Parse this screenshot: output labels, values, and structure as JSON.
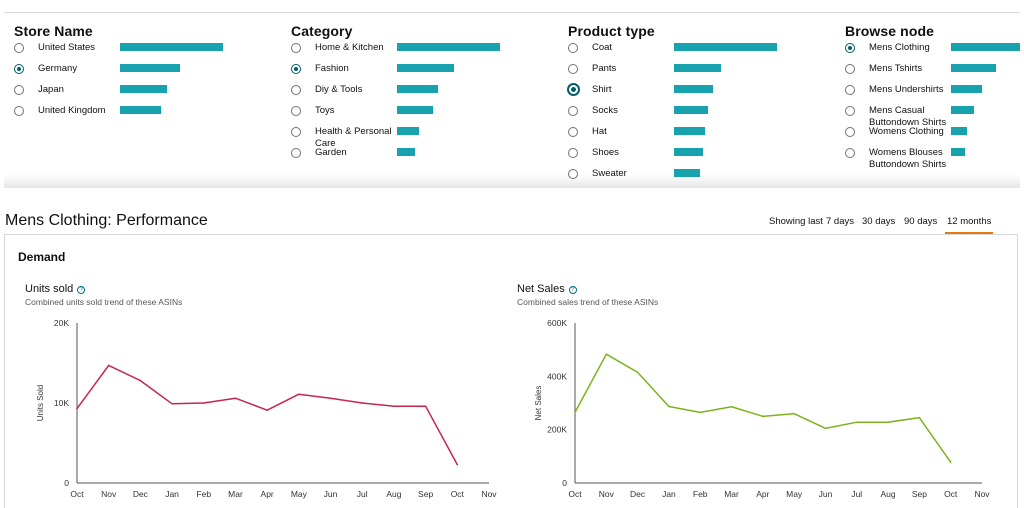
{
  "filters": [
    {
      "title": "Store Name",
      "items": [
        {
          "label": "United States",
          "share": 1.0,
          "selected": false
        },
        {
          "label": "Germany",
          "share": 0.58,
          "selected": true
        },
        {
          "label": "Japan",
          "share": 0.46,
          "selected": false
        },
        {
          "label": "United Kingdom",
          "share": 0.4,
          "selected": false
        }
      ]
    },
    {
      "title": "Category",
      "items": [
        {
          "label": "Home & Kitchen",
          "share": 1.0,
          "selected": false
        },
        {
          "label": "Fashion",
          "share": 0.55,
          "selected": true
        },
        {
          "label": "Diy & Tools",
          "share": 0.4,
          "selected": false
        },
        {
          "label": "Toys",
          "share": 0.35,
          "selected": false
        },
        {
          "label": "Health & Personal Care",
          "share": 0.21,
          "selected": false
        },
        {
          "label": "Garden",
          "share": 0.17,
          "selected": false
        }
      ]
    },
    {
      "title": "Product type",
      "items": [
        {
          "label": "Coat",
          "share": 1.0,
          "selected": false
        },
        {
          "label": "Pants",
          "share": 0.46,
          "selected": false
        },
        {
          "label": "Shirt",
          "share": 0.38,
          "selected": true
        },
        {
          "label": "Socks",
          "share": 0.33,
          "selected": false
        },
        {
          "label": "Hat",
          "share": 0.3,
          "selected": false
        },
        {
          "label": "Shoes",
          "share": 0.28,
          "selected": false
        },
        {
          "label": "Sweater",
          "share": 0.25,
          "selected": false
        }
      ]
    },
    {
      "title": "Browse node",
      "items": [
        {
          "label": "Mens Clothing",
          "share": 1.0,
          "selected": true
        },
        {
          "label": "Mens Tshirts",
          "share": 0.44,
          "selected": false
        },
        {
          "label": "Mens Undershirts",
          "share": 0.3,
          "selected": false
        },
        {
          "label": "Mens Casual Buttondown Shirts",
          "share": 0.22,
          "selected": false
        },
        {
          "label": "Womens Clothing",
          "share": 0.16,
          "selected": false
        },
        {
          "label": "Womens Blouses Buttondown Shirts",
          "share": 0.14,
          "selected": false
        }
      ]
    }
  ],
  "performance": {
    "title": "Mens Clothing: Performance",
    "showing_label": "Showing last",
    "ranges": [
      "7 days",
      "30 days",
      "90 days",
      "12 months"
    ],
    "active_range": "12 months",
    "section": "Demand"
  },
  "charts": {
    "units": {
      "title": "Units sold",
      "subtitle": "Combined units sold trend of these ASINs",
      "info_glyph": "?"
    },
    "sales": {
      "title": "Net Sales",
      "subtitle": "Combined sales trend of these ASINs",
      "info_glyph": "?"
    }
  },
  "colors": {
    "accent": "#17a2ad",
    "units_line": "#c7254e",
    "sales_line": "#7db31d",
    "active_tab": "#e47911"
  },
  "chart_data": [
    {
      "type": "line",
      "title": "Units sold",
      "ylabel": "Units Sold",
      "x": [
        "Oct",
        "Nov",
        "Dec",
        "Jan",
        "Feb",
        "Mar",
        "Apr",
        "May",
        "Jun",
        "Jul",
        "Aug",
        "Sep",
        "Oct",
        "Nov"
      ],
      "yticks": [
        "0",
        "10K",
        "20K"
      ],
      "ylim": [
        0,
        20000
      ],
      "series": [
        {
          "values": [
            9300,
            14700,
            12800,
            9900,
            10000,
            10600,
            9100,
            11100,
            10600,
            10000,
            9600,
            9600,
            2300,
            null
          ]
        }
      ],
      "grid": false
    },
    {
      "type": "line",
      "title": "Net Sales",
      "ylabel": "Net Sales",
      "x": [
        "Oct",
        "Nov",
        "Dec",
        "Jan",
        "Feb",
        "Mar",
        "Apr",
        "May",
        "Jun",
        "Jul",
        "Aug",
        "Sep",
        "Oct",
        "Nov"
      ],
      "yticks": [
        "0",
        "200K",
        "400K",
        "600K"
      ],
      "ylim": [
        0,
        600000
      ],
      "series": [
        {
          "values": [
            265000,
            483000,
            415000,
            287000,
            265000,
            286000,
            250000,
            260000,
            205000,
            228000,
            228000,
            245000,
            78000,
            null
          ]
        }
      ],
      "grid": false
    }
  ]
}
